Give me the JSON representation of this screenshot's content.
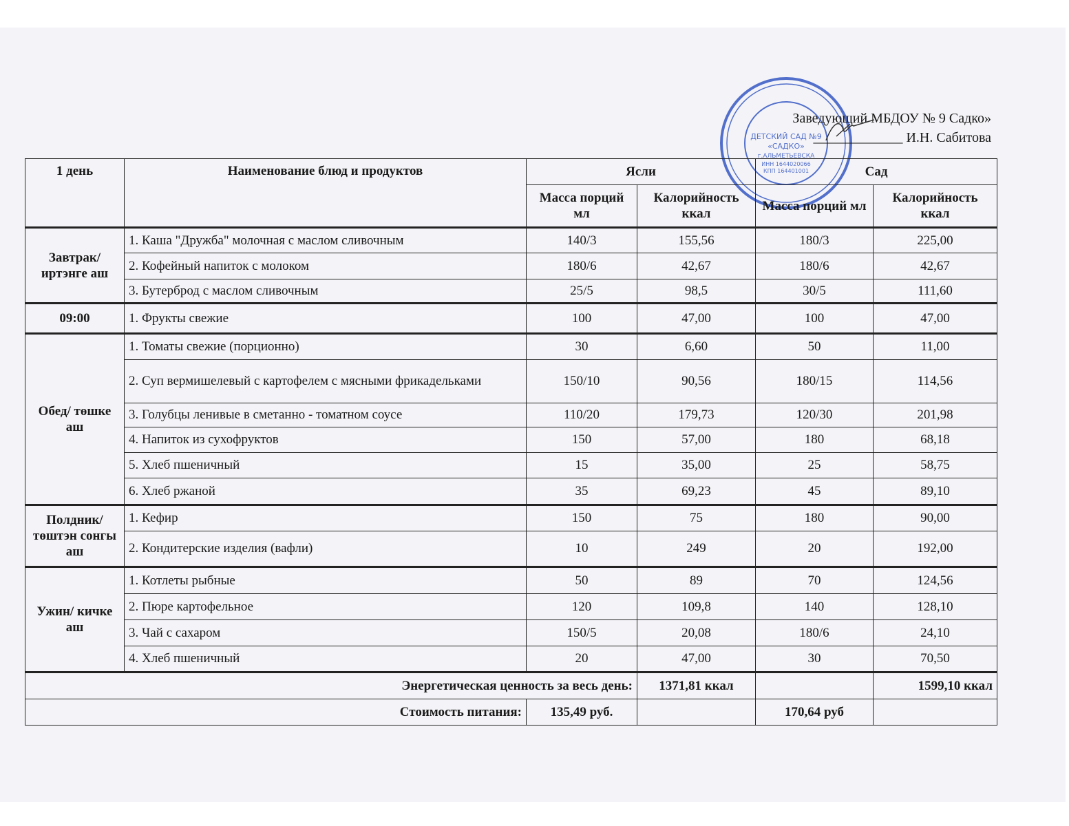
{
  "approval": {
    "line1": "Заведующий МБДОУ № 9 Садко»",
    "line2": "_____________ И.Н. Сабитова"
  },
  "stamp": {
    "color": "#2a4fc0",
    "text": "ДЕТСКИЙ САД №9 «САДКО» г.АЛЬМЕТЬЕВСКА ИНН 1644020066 КПП 164401001"
  },
  "table": {
    "headers": {
      "day": "1 день",
      "name": "Наименование блюд и продуктов",
      "yasli": "Ясли",
      "sad": "Сад",
      "mass": "Масса порций мл",
      "kcal": "Калорийность ккал"
    },
    "groups": [
      {
        "period": "Завтрак/ иртэнге аш",
        "rows": [
          {
            "name": "1. Каша \"Дружба\" молочная с маслом сливочным",
            "y_mass": "140/3",
            "y_kcal": "155,56",
            "s_mass": "180/3",
            "s_kcal": "225,00",
            "h": 37
          },
          {
            "name": "2. Кофейный напиток с молоком",
            "y_mass": "180/6",
            "y_kcal": "42,67",
            "s_mass": "180/6",
            "s_kcal": "42,67",
            "h": 38
          },
          {
            "name": "3. Бутерброд с маслом сливочным",
            "y_mass": "25/5",
            "y_kcal": "98,5",
            "s_mass": "30/5",
            "s_kcal": "111,60",
            "h": 35
          }
        ]
      },
      {
        "period": "09:00",
        "rows": [
          {
            "name": "1. Фрукты свежие",
            "y_mass": "100",
            "y_kcal": "47,00",
            "s_mass": "100",
            "s_kcal": "47,00",
            "h": 44
          }
        ]
      },
      {
        "period": "Обед/ төшке аш",
        "rows": [
          {
            "name": "1. Томаты свежие (порционно)",
            "y_mass": "30",
            "y_kcal": "6,60",
            "s_mass": "50",
            "s_kcal": "11,00",
            "h": 38
          },
          {
            "name": "2. Суп вермишелевый с картофелем с мясными фрикадельками",
            "y_mass": "150/10",
            "y_kcal": "90,56",
            "s_mass": "180/15",
            "s_kcal": "114,56",
            "h": 63
          },
          {
            "name": "3. Голубцы ленивые в сметанно - томатном соусе",
            "y_mass": "110/20",
            "y_kcal": "179,73",
            "s_mass": "120/30",
            "s_kcal": "201,98",
            "h": 35
          },
          {
            "name": "4. Напиток из сухофруктов",
            "y_mass": "150",
            "y_kcal": "57,00",
            "s_mass": "180",
            "s_kcal": "68,18",
            "h": 37
          },
          {
            "name": "5. Хлеб пшеничный",
            "y_mass": "15",
            "y_kcal": "35,00",
            "s_mass": "25",
            "s_kcal": "58,75",
            "h": 37
          },
          {
            "name": "6. Хлеб ржаной",
            "y_mass": "35",
            "y_kcal": "69,23",
            "s_mass": "45",
            "s_kcal": "89,10",
            "h": 39
          }
        ]
      },
      {
        "period": "Полдник/ төштэн сонгы аш",
        "rows": [
          {
            "name": "1. Кефир",
            "y_mass": "150",
            "y_kcal": "75",
            "s_mass": "180",
            "s_kcal": "90,00",
            "h": 38
          },
          {
            "name": "2. Кондитерские изделия (вафли)",
            "y_mass": "10",
            "y_kcal": "249",
            "s_mass": "20",
            "s_kcal": "192,00",
            "h": 52
          }
        ]
      },
      {
        "period": "Ужин/ кичке аш",
        "rows": [
          {
            "name": "1. Котлеты рыбные",
            "y_mass": "50",
            "y_kcal": "89",
            "s_mass": "70",
            "s_kcal": "124,56",
            "h": 39
          },
          {
            "name": "2. Пюре картофельное",
            "y_mass": "120",
            "y_kcal": "109,8",
            "s_mass": "140",
            "s_kcal": "128,10",
            "h": 38
          },
          {
            "name": "3. Чай с сахаром",
            "y_mass": "150/5",
            "y_kcal": "20,08",
            "s_mass": "180/6",
            "s_kcal": "24,10",
            "h": 38
          },
          {
            "name": "4. Хлеб пшеничный",
            "y_mass": "20",
            "y_kcal": "47,00",
            "s_mass": "30",
            "s_kcal": "70,50",
            "h": 38
          }
        ]
      }
    ],
    "energy": {
      "label": "Энергетическая ценность за весь день:",
      "yasli": "1371,81 ккал",
      "sad": "1599,10 ккал"
    },
    "cost": {
      "label": "Стоимость питания:",
      "yasli": "135,49 руб.",
      "sad": "170,64 руб"
    }
  }
}
